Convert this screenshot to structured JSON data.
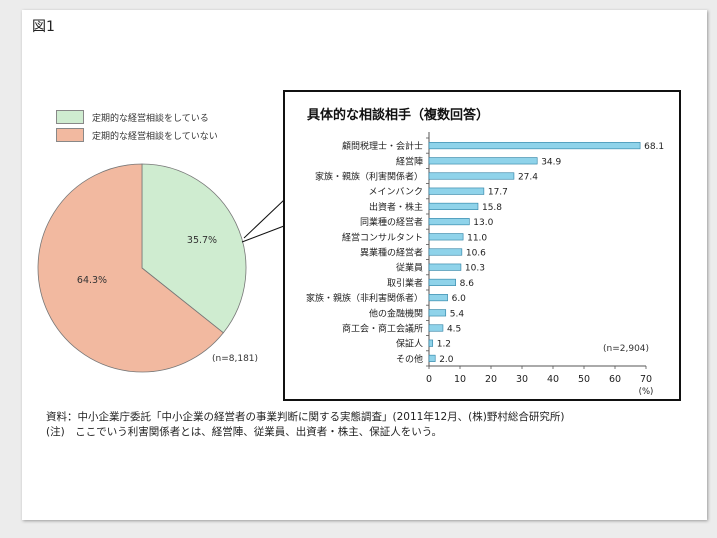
{
  "figure_label": "図1",
  "legend": [
    {
      "label": "定期的な経営相談をしている",
      "color": "#cfecd0"
    },
    {
      "label": "定期的な経営相談をしていない",
      "color": "#f2b9a0"
    }
  ],
  "pie_note": "(n=8,181)",
  "bar_note": "(n=2,904)",
  "source_lines": [
    "資料：中小企業庁委託「中小企業の経営者の事業判断に関する実態調査」(2011年12月、(株)野村総合研究所)",
    "(注)　ここでいう利害関係者とは、経営陣、従業員、出資者・株主、保証人をいう。"
  ],
  "chart_data": [
    {
      "type": "pie",
      "slices": [
        {
          "label": "定期的な経営相談をしている",
          "value": 35.7,
          "display": "35.7%",
          "color": "#cfecd0"
        },
        {
          "label": "定期的な経営相談をしていない",
          "value": 64.3,
          "display": "64.3%",
          "color": "#f2b9a0"
        }
      ]
    },
    {
      "type": "bar",
      "orientation": "horizontal",
      "title": "具体的な相談相手（複数回答）",
      "categories": [
        "顧問税理士・会計士",
        "経営陣",
        "家族・親族（利害関係者）",
        "メインバンク",
        "出資者・株主",
        "同業種の経営者",
        "経営コンサルタント",
        "異業種の経営者",
        "従業員",
        "取引業者",
        "家族・親族（非利害関係者）",
        "他の金融機関",
        "商工会・商工会議所",
        "保証人",
        "その他"
      ],
      "values": [
        68.1,
        34.9,
        27.4,
        17.7,
        15.8,
        13.0,
        11.0,
        10.6,
        10.3,
        8.6,
        6.0,
        5.4,
        4.5,
        1.2,
        2.0
      ],
      "value_labels": [
        "68.1",
        "34.9",
        "27.4",
        "17.7",
        "15.8",
        "13.0",
        "11.0",
        "10.6",
        "10.3",
        "8.6",
        "6.0",
        "5.4",
        "4.5",
        "1.2",
        "2.0"
      ],
      "xlim": [
        0,
        70
      ],
      "xticks": [
        "0",
        "10",
        "20",
        "30",
        "40",
        "50",
        "60",
        "70"
      ],
      "xunit": "(%)",
      "bar_color": "#8fd3ea"
    }
  ]
}
